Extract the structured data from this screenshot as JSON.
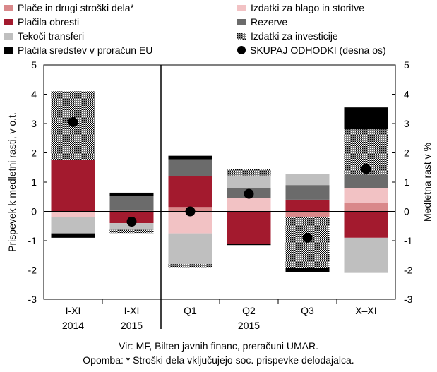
{
  "chart_data": {
    "type": "bar",
    "stacked": true,
    "categories": [
      [
        "I-XI",
        "2014"
      ],
      [
        "I-XI",
        "2015"
      ],
      [
        "Q1",
        ""
      ],
      [
        "Q2",
        "2015"
      ],
      [
        "Q3",
        ""
      ],
      [
        "X–XI",
        ""
      ]
    ],
    "ylim": [
      -3,
      5
    ],
    "yticks": [
      -3,
      -2,
      -1,
      0,
      1,
      2,
      3,
      4,
      5
    ],
    "y2lim": [
      -3,
      5
    ],
    "y2ticks": [
      -3,
      -2,
      -1,
      0,
      1,
      2,
      3,
      4,
      5
    ],
    "ylabel": "Prispevek k medletni rasti, v o.t.",
    "y2label": "Medletna rast v %",
    "series": [
      {
        "name": "Plače in drugi stroški dela*",
        "color": "#d9888a",
        "pattern": "solid",
        "values": [
          0.0,
          0.02,
          0.15,
          0.0,
          -0.18,
          0.3
        ]
      },
      {
        "name": "Izdatki za blago in storitve",
        "color": "#f2c2c4",
        "pattern": "solid",
        "values": [
          -0.2,
          0.0,
          -0.75,
          0.45,
          0.0,
          0.5
        ]
      },
      {
        "name": "Plačila obresti",
        "color": "#a31a2e",
        "pattern": "solid",
        "values": [
          1.75,
          -0.4,
          1.05,
          -1.1,
          0.4,
          -0.9
        ]
      },
      {
        "name": "Rezerve",
        "color": "#6b6b6b",
        "pattern": "solid",
        "values": [
          0.0,
          0.5,
          0.58,
          0.35,
          0.5,
          0.45
        ]
      },
      {
        "name": "Tekoči transferi",
        "color": "#bfbfbf",
        "pattern": "solid",
        "values": [
          -0.55,
          -0.22,
          -1.05,
          0.43,
          0.38,
          -1.2
        ]
      },
      {
        "name": "Izdatki za investicije",
        "color": "#000000",
        "pattern": "checker",
        "values": [
          2.35,
          -0.12,
          -0.1,
          0.22,
          -1.75,
          1.55
        ]
      },
      {
        "name": "Plačila sredstev v proračun EU",
        "color": "#000000",
        "pattern": "solid",
        "values": [
          -0.15,
          0.12,
          0.12,
          -0.05,
          -0.15,
          0.75
        ]
      }
    ],
    "total_series": {
      "name": "SKUPAJ ODHODKI (desna os)",
      "axis": "right",
      "values": [
        3.05,
        -0.35,
        0.0,
        0.6,
        -0.9,
        1.45
      ]
    },
    "year_groups": [
      {
        "label": "2014",
        "categories": [
          0
        ]
      },
      {
        "label": "2015",
        "categories": [
          1
        ]
      },
      {
        "label": "2015",
        "categories": [
          2,
          3,
          4,
          5
        ]
      }
    ],
    "legend": "top",
    "grid": false
  },
  "legend_items": [
    {
      "label": "Plače in drugi stroški dela*",
      "color": "#d9888a",
      "kind": "solid"
    },
    {
      "label": "Izdatki za blago in storitve",
      "color": "#f2c2c4",
      "kind": "solid"
    },
    {
      "label": "Plačila obresti",
      "color": "#a31a2e",
      "kind": "solid"
    },
    {
      "label": "Rezerve",
      "color": "#6b6b6b",
      "kind": "solid"
    },
    {
      "label": "Tekoči transferi",
      "color": "#bfbfbf",
      "kind": "solid"
    },
    {
      "label": "Izdatki za investicije",
      "color": "#000000",
      "kind": "checker"
    },
    {
      "label": "Plačila sredstev v proračun EU",
      "color": "#000000",
      "kind": "solid"
    },
    {
      "label": "SKUPAJ ODHODKI (desna os)",
      "color": "#000000",
      "kind": "dot"
    }
  ],
  "notes": {
    "source": "Vir: MF, Bilten javnih financ, preračuni UMAR.",
    "footnote": "Opomba: * Stroški dela vključujejo soc. prispevke delodajalca."
  }
}
